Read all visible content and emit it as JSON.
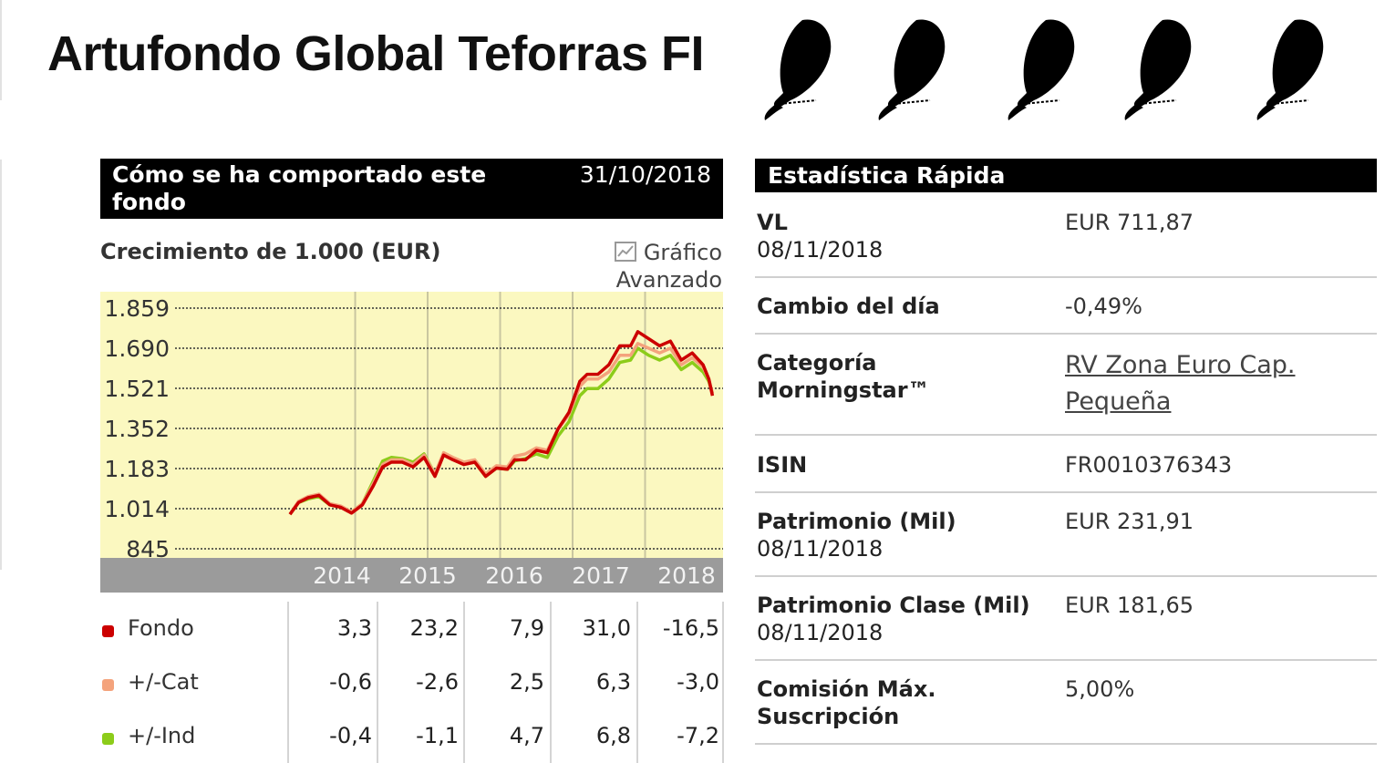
{
  "title": "Artufondo Global Teforras FI",
  "rating_icons": [
    "jamon-icon",
    "jamon-icon",
    "jamon-icon",
    "jamon-icon",
    "jamon-icon"
  ],
  "performance": {
    "header": "Cómo se ha comportado este fondo",
    "date": "31/10/2018",
    "growth_label": "Crecimiento de 1.000 (EUR)",
    "advanced_chart_link": [
      "Gráfico",
      "Avanzado"
    ]
  },
  "chart_data": {
    "type": "line",
    "x_label_years": [
      "2014",
      "2015",
      "2016",
      "2017",
      "2018"
    ],
    "y_ticks": [
      "1.859",
      "1.690",
      "1.521",
      "1.352",
      "1.183",
      "1.014",
      "845"
    ],
    "ylim": [
      845,
      1859
    ],
    "xlim": [
      2013.0,
      2018.85
    ],
    "grid": true,
    "background": "#fbf8c0",
    "axis_band": "#9b9b9b",
    "series": [
      {
        "color": "#cc0000",
        "x": [
          2013.0,
          2013.12,
          2013.25,
          2013.4,
          2013.55,
          2013.7,
          2013.85,
          2014.0,
          2014.15,
          2014.28,
          2014.4,
          2014.55,
          2014.7,
          2014.85,
          2015.0,
          2015.12,
          2015.25,
          2015.4,
          2015.55,
          2015.7,
          2015.85,
          2016.0,
          2016.1,
          2016.25,
          2016.4,
          2016.55,
          2016.7,
          2016.85,
          2017.0,
          2017.1,
          2017.25,
          2017.4,
          2017.55,
          2017.7,
          2017.8,
          2017.95,
          2018.1,
          2018.25,
          2018.4,
          2018.55,
          2018.7,
          2018.78,
          2018.83
        ],
        "y": [
          990,
          1040,
          1060,
          1070,
          1030,
          1020,
          995,
          1030,
          1110,
          1190,
          1210,
          1210,
          1190,
          1230,
          1150,
          1240,
          1220,
          1200,
          1210,
          1150,
          1185,
          1180,
          1220,
          1220,
          1260,
          1250,
          1350,
          1420,
          1550,
          1580,
          1580,
          1620,
          1700,
          1700,
          1760,
          1730,
          1700,
          1720,
          1640,
          1670,
          1620,
          1560,
          1490
        ]
      },
      {
        "color": "#f4a37c",
        "x": [
          2013.0,
          2013.12,
          2013.25,
          2013.4,
          2013.55,
          2013.7,
          2013.85,
          2014.0,
          2014.15,
          2014.28,
          2014.4,
          2014.55,
          2014.7,
          2014.85,
          2015.0,
          2015.12,
          2015.25,
          2015.4,
          2015.55,
          2015.7,
          2015.85,
          2016.0,
          2016.1,
          2016.25,
          2016.4,
          2016.55,
          2016.7,
          2016.85,
          2017.0,
          2017.1,
          2017.25,
          2017.4,
          2017.55,
          2017.7,
          2017.8,
          2017.95,
          2018.1,
          2018.25,
          2018.4,
          2018.55,
          2018.7,
          2018.78,
          2018.83
        ],
        "y": [
          990,
          1045,
          1065,
          1075,
          1035,
          1025,
          1000,
          1035,
          1120,
          1200,
          1220,
          1220,
          1200,
          1240,
          1160,
          1250,
          1230,
          1210,
          1220,
          1160,
          1195,
          1190,
          1235,
          1245,
          1270,
          1260,
          1350,
          1410,
          1530,
          1560,
          1560,
          1590,
          1660,
          1660,
          1710,
          1690,
          1670,
          1690,
          1620,
          1650,
          1610,
          1560,
          1500
        ]
      },
      {
        "color": "#8ccc1a",
        "x": [
          2013.0,
          2013.12,
          2013.25,
          2013.4,
          2013.55,
          2013.7,
          2013.85,
          2014.0,
          2014.15,
          2014.28,
          2014.4,
          2014.55,
          2014.7,
          2014.85,
          2015.0,
          2015.12,
          2015.25,
          2015.4,
          2015.55,
          2015.7,
          2015.85,
          2016.0,
          2016.1,
          2016.25,
          2016.4,
          2016.55,
          2016.7,
          2016.85,
          2017.0,
          2017.1,
          2017.25,
          2017.4,
          2017.55,
          2017.7,
          2017.8,
          2017.95,
          2018.1,
          2018.25,
          2018.4,
          2018.55,
          2018.7,
          2018.78,
          2018.83
        ],
        "y": [
          990,
          1040,
          1055,
          1065,
          1030,
          1020,
          1000,
          1035,
          1130,
          1215,
          1230,
          1225,
          1210,
          1245,
          1160,
          1245,
          1225,
          1205,
          1210,
          1150,
          1185,
          1180,
          1215,
          1225,
          1245,
          1230,
          1320,
          1380,
          1490,
          1520,
          1520,
          1560,
          1630,
          1640,
          1690,
          1660,
          1640,
          1660,
          1600,
          1630,
          1590,
          1550,
          1500
        ]
      }
    ]
  },
  "returns_table": {
    "rows": [
      {
        "label": "Fondo",
        "color": "#cc0000",
        "values": [
          "3,3",
          "23,2",
          "7,9",
          "31,0",
          "-16,5"
        ]
      },
      {
        "label": "+/-Cat",
        "color": "#f4a37c",
        "values": [
          "-0,6",
          "-2,6",
          "2,5",
          "6,3",
          "-3,0"
        ]
      },
      {
        "label": "+/-Ind",
        "color": "#8ccc1a",
        "values": [
          "-0,4",
          "-1,1",
          "4,7",
          "6,8",
          "-7,2"
        ]
      }
    ]
  },
  "quick_stats": {
    "header": "Estadística Rápida",
    "rows": [
      {
        "label": "VL",
        "sublabel": "08/11/2018",
        "value": "EUR 711,87"
      },
      {
        "label": "Cambio del día",
        "value": "-0,49%"
      },
      {
        "label": "Categoría Morningstar™",
        "value_link": [
          "RV Zona Euro Cap.",
          "Pequeña"
        ]
      },
      {
        "label": "ISIN",
        "value": "FR0010376343"
      },
      {
        "label": "Patrimonio (Mil)",
        "sublabel": "08/11/2018",
        "value": "EUR 231,91"
      },
      {
        "label": "Patrimonio Clase (Mil)",
        "sublabel": "08/11/2018",
        "value": "EUR 181,65"
      },
      {
        "label": "Comisión Máx. Suscripción",
        "value": "5,00%"
      }
    ]
  }
}
